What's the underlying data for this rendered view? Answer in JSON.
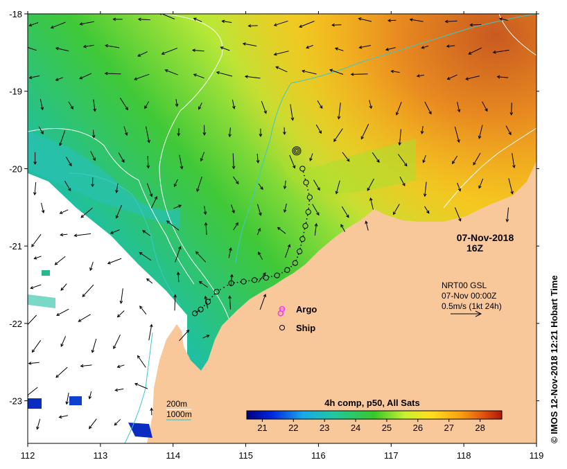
{
  "map": {
    "date": "07-Nov-2018",
    "time": "16Z",
    "legend": {
      "argo": "Argo",
      "ship": "Ship"
    },
    "current_info": {
      "line1": "NRT00 GSL",
      "line2": "07-Nov 00:00Z",
      "line3": "0.5m/s (1kt 24h)"
    },
    "isobaths": {
      "label_200": "200m",
      "label_1000": "1000m",
      "color_200": "#ffffff",
      "color_1000": "#3ec8c8"
    },
    "colorbar": {
      "title": "4h comp, p50, All Sats",
      "min": 20.5,
      "max": 28.7,
      "ticks": [
        "21",
        "22",
        "23",
        "24",
        "25",
        "26",
        "27",
        "28"
      ],
      "tick_values": [
        21,
        22,
        23,
        24,
        25,
        26,
        27,
        28
      ]
    },
    "credit": "© IMOS 12-Nov-2018 12:21 Hobart Time",
    "colors": {
      "land": "#f8c89a",
      "argo": "#ff33ff"
    }
  },
  "chart_data": {
    "type": "map",
    "x_ticks": [
      "112",
      "113",
      "114",
      "115",
      "116",
      "117",
      "118",
      "119"
    ],
    "y_ticks": [
      "-18",
      "-19",
      "-20",
      "-21",
      "-22",
      "-23"
    ],
    "xlim": [
      112,
      119
    ],
    "ylim": [
      -23.55,
      -18
    ],
    "argo": [
      [
        115.48,
        -21.87
      ]
    ],
    "ship_track": [
      [
        115.78,
        -20.0
      ],
      [
        115.83,
        -20.18
      ],
      [
        115.88,
        -20.37
      ],
      [
        115.86,
        -20.56
      ],
      [
        115.82,
        -20.74
      ],
      [
        115.78,
        -20.91
      ],
      [
        115.74,
        -21.07
      ],
      [
        115.68,
        -21.22
      ],
      [
        115.57,
        -21.31
      ],
      [
        115.43,
        -21.38
      ],
      [
        115.28,
        -21.41
      ],
      [
        115.12,
        -21.44
      ],
      [
        114.97,
        -21.46
      ],
      [
        114.8,
        -21.48
      ],
      [
        114.6,
        -21.59
      ],
      [
        114.48,
        -21.72
      ],
      [
        114.38,
        -21.82
      ],
      [
        114.3,
        -21.87
      ]
    ]
  }
}
